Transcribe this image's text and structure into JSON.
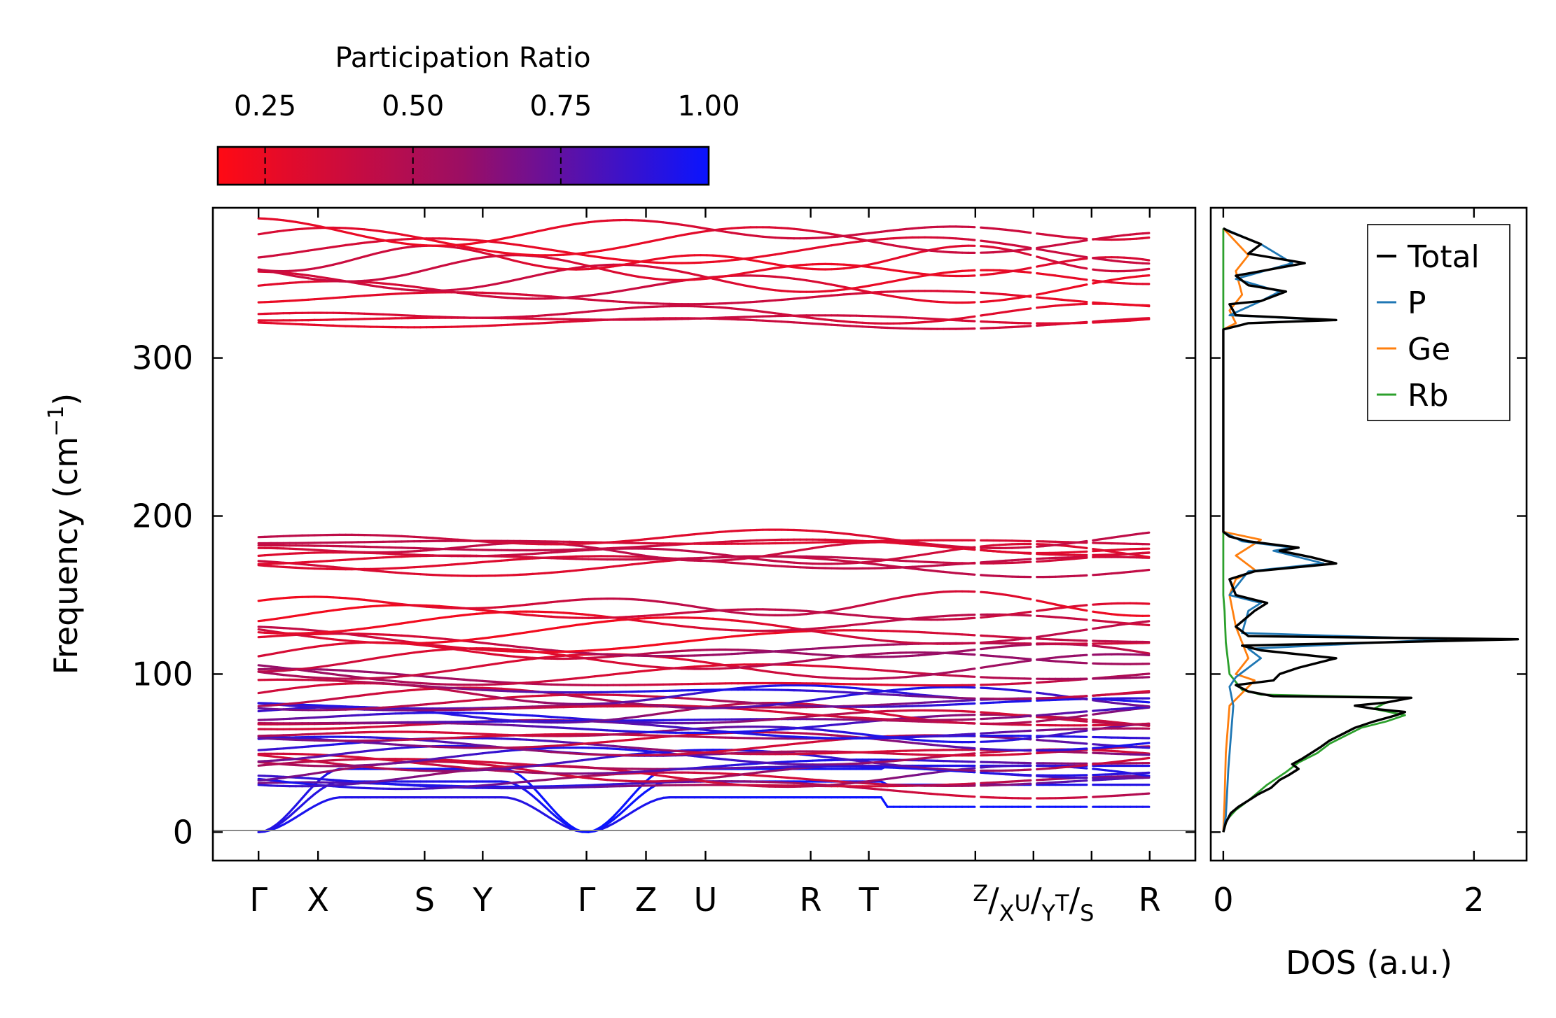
{
  "chart_data": [
    {
      "type": "line",
      "name": "phonon-dispersion",
      "ylabel": "Frequency (cm",
      "ylabel_sup": "−1",
      "ylabel_close": ")",
      "ylim": [
        -18,
        395
      ],
      "yticks": [
        0,
        100,
        200,
        300
      ],
      "ytick_labels": [
        "0",
        "100",
        "200",
        "300"
      ],
      "kpath_positions": [
        0,
        0.43,
        1.2,
        1.62,
        2.37,
        2.8,
        3.23,
        3.99,
        4.41,
        5.18,
        5.6,
        6.02,
        6.44
      ],
      "kpath_labels": [
        {
          "text": "Γ"
        },
        {
          "text": "X"
        },
        {
          "text": "S"
        },
        {
          "text": "Y"
        },
        {
          "text": "Γ"
        },
        {
          "text": "Z"
        },
        {
          "text": "U"
        },
        {
          "text": "R"
        },
        {
          "text": "T"
        },
        {
          "text": "Z",
          "sub": "X",
          "mid": "U",
          "sub2": "Y",
          "mid2": "T",
          "sub3": "S"
        },
        {
          "text": "R"
        }
      ],
      "kpath_label_x": [
        0,
        0.43,
        1.2,
        1.62,
        2.37,
        2.8,
        3.23,
        3.99,
        4.41,
        5.6,
        6.44
      ],
      "xlim": [
        -0.33,
        6.77
      ],
      "colorbar": {
        "title": "Participation Ratio",
        "range": [
          0.17,
          1.0
        ],
        "ticks": [
          0.25,
          0.5,
          0.75,
          1.0
        ],
        "tick_labels": [
          "0.25",
          "0.50",
          "0.75",
          "1.00"
        ],
        "color_low": "#ff0a14",
        "color_mid": "#9b0e64",
        "color_high": "#0a14ff"
      },
      "zero_line_color": "#888888"
    },
    {
      "type": "line",
      "name": "density-of-states",
      "xlabel": "DOS (a.u.)",
      "xlim": [
        -0.1,
        2.42
      ],
      "xticks": [
        0,
        2
      ],
      "xtick_labels": [
        "0",
        "2"
      ],
      "ylim": [
        -18,
        395
      ],
      "legend_position": "top-right",
      "series": [
        {
          "name": "Total",
          "color": "#000000",
          "points": [
            [
              0,
              0
            ],
            [
              0.02,
              6
            ],
            [
              0.06,
              12
            ],
            [
              0.12,
              16
            ],
            [
              0.2,
              20
            ],
            [
              0.28,
              24
            ],
            [
              0.38,
              28
            ],
            [
              0.45,
              33
            ],
            [
              0.52,
              36
            ],
            [
              0.6,
              40
            ],
            [
              0.55,
              43
            ],
            [
              0.62,
              46
            ],
            [
              0.7,
              50
            ],
            [
              0.78,
              54
            ],
            [
              0.85,
              58
            ],
            [
              0.95,
              62
            ],
            [
              1.05,
              66
            ],
            [
              1.2,
              70
            ],
            [
              1.38,
              74
            ],
            [
              1.45,
              76
            ],
            [
              1.2,
              78
            ],
            [
              1.05,
              80
            ],
            [
              1.3,
              82
            ],
            [
              1.5,
              85
            ],
            [
              0.4,
              86
            ],
            [
              0.2,
              89
            ],
            [
              0.1,
              93
            ],
            [
              0.4,
              96
            ],
            [
              0.45,
              100
            ],
            [
              0.6,
              104
            ],
            [
              0.9,
              110
            ],
            [
              0.3,
              115
            ],
            [
              0.15,
              118
            ],
            [
              2.35,
              122
            ],
            [
              0.2,
              124
            ],
            [
              0.1,
              130
            ],
            [
              0.25,
              140
            ],
            [
              0.35,
              145
            ],
            [
              0.1,
              150
            ],
            [
              0.05,
              160
            ],
            [
              0.25,
              165
            ],
            [
              0.9,
              170
            ],
            [
              0.7,
              174
            ],
            [
              0.45,
              178
            ],
            [
              0.6,
              180
            ],
            [
              0.2,
              184
            ],
            [
              0.05,
              187
            ],
            [
              0,
              190
            ],
            [
              0,
              318
            ],
            [
              0.2,
              322
            ],
            [
              0.9,
              324
            ],
            [
              0.1,
              327
            ],
            [
              0.05,
              334
            ],
            [
              0.3,
              336
            ],
            [
              0.5,
              342
            ],
            [
              0.2,
              346
            ],
            [
              0.1,
              352
            ],
            [
              0.65,
              360
            ],
            [
              0.2,
              366
            ],
            [
              0.3,
              372
            ],
            [
              0.05,
              380
            ],
            [
              0,
              382
            ]
          ]
        },
        {
          "name": "P",
          "color": "#1f77b4",
          "points": [
            [
              0,
              0
            ],
            [
              0.02,
              10
            ],
            [
              0.03,
              25
            ],
            [
              0.04,
              40
            ],
            [
              0.06,
              60
            ],
            [
              0.08,
              80
            ],
            [
              0.05,
              92
            ],
            [
              0.1,
              98
            ],
            [
              0.2,
              104
            ],
            [
              0.3,
              110
            ],
            [
              0.2,
              116
            ],
            [
              1.78,
              122
            ],
            [
              0.15,
              126
            ],
            [
              0.2,
              140
            ],
            [
              0.3,
              145
            ],
            [
              0.05,
              150
            ],
            [
              0.2,
              165
            ],
            [
              0.8,
              170
            ],
            [
              0.6,
              174
            ],
            [
              0.4,
              178
            ],
            [
              0.55,
              180
            ],
            [
              0.15,
              184
            ],
            [
              0,
              190
            ],
            [
              0,
              318
            ],
            [
              0.2,
              322
            ],
            [
              0.85,
              324
            ],
            [
              0.05,
              327
            ],
            [
              0.3,
              336
            ],
            [
              0.45,
              342
            ],
            [
              0.1,
              350
            ],
            [
              0.55,
              360
            ],
            [
              0.3,
              372
            ],
            [
              0,
              382
            ]
          ]
        },
        {
          "name": "Ge",
          "color": "#ff7f0e",
          "points": [
            [
              0,
              0
            ],
            [
              0.01,
              20
            ],
            [
              0.02,
              50
            ],
            [
              0.05,
              80
            ],
            [
              0.2,
              92
            ],
            [
              0.25,
              96
            ],
            [
              0.1,
              100
            ],
            [
              0.2,
              110
            ],
            [
              0.15,
              120
            ],
            [
              0.1,
              130
            ],
            [
              0.05,
              150
            ],
            [
              0.1,
              160
            ],
            [
              0.25,
              166
            ],
            [
              0.1,
              175
            ],
            [
              0.3,
              185
            ],
            [
              0,
              190
            ],
            [
              0,
              318
            ],
            [
              0.1,
              322
            ],
            [
              0.05,
              330
            ],
            [
              0.15,
              340
            ],
            [
              0.1,
              355
            ],
            [
              0.2,
              365
            ],
            [
              0,
              382
            ]
          ]
        },
        {
          "name": "Rb",
          "color": "#2ca02c",
          "points": [
            [
              0,
              0
            ],
            [
              0.03,
              8
            ],
            [
              0.1,
              14
            ],
            [
              0.2,
              20
            ],
            [
              0.35,
              30
            ],
            [
              0.5,
              38
            ],
            [
              0.6,
              44
            ],
            [
              0.75,
              50
            ],
            [
              0.85,
              56
            ],
            [
              0.95,
              60
            ],
            [
              1.1,
              66
            ],
            [
              1.3,
              70
            ],
            [
              1.45,
              74
            ],
            [
              1.2,
              78
            ],
            [
              1.3,
              82
            ],
            [
              1.5,
              85
            ],
            [
              0.3,
              87
            ],
            [
              0.15,
              90
            ],
            [
              0.05,
              100
            ],
            [
              0.02,
              120
            ],
            [
              0.01,
              140
            ],
            [
              0,
              150
            ],
            [
              0,
              382
            ]
          ]
        }
      ]
    }
  ]
}
